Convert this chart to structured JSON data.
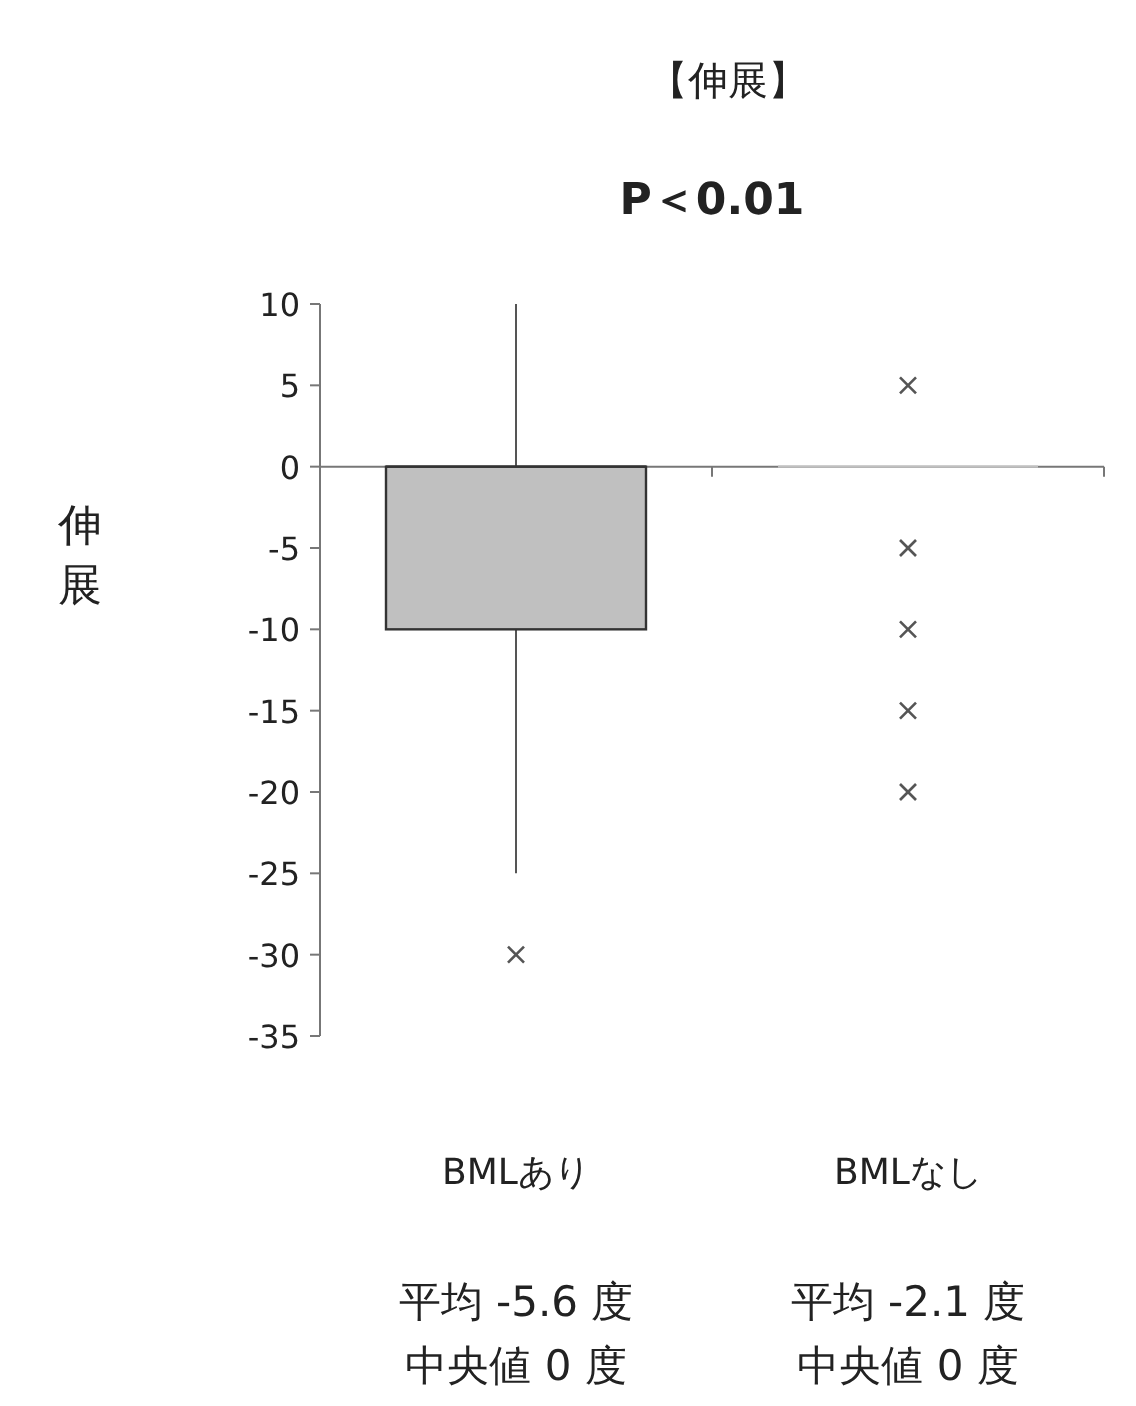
{
  "chart_data": {
    "type": "box",
    "title": "【伸展】",
    "subtitle": "P＜0.01",
    "ylabel": "伸展",
    "categories": [
      "BMLあり",
      "BMLなし"
    ],
    "color": "#c0c0c0",
    "boxes": [
      {
        "low": -25,
        "q1": -10,
        "median": 0,
        "q3": 0,
        "high": 10,
        "outliers": [
          -30
        ]
      },
      {
        "low": 0,
        "q1": 0,
        "median": 0,
        "q3": 0,
        "high": 0,
        "outliers": [
          5,
          -5,
          -10,
          -15,
          -20
        ]
      }
    ],
    "ylim": [
      -35,
      10
    ],
    "yticks": [
      -35,
      -30,
      -25,
      -20,
      -15,
      -10,
      -5,
      0,
      5,
      10
    ],
    "annotations": [
      "平均 -5.6 度",
      "平均 -2.1 度",
      "中央値 0 度",
      "中央値 0 度"
    ]
  }
}
